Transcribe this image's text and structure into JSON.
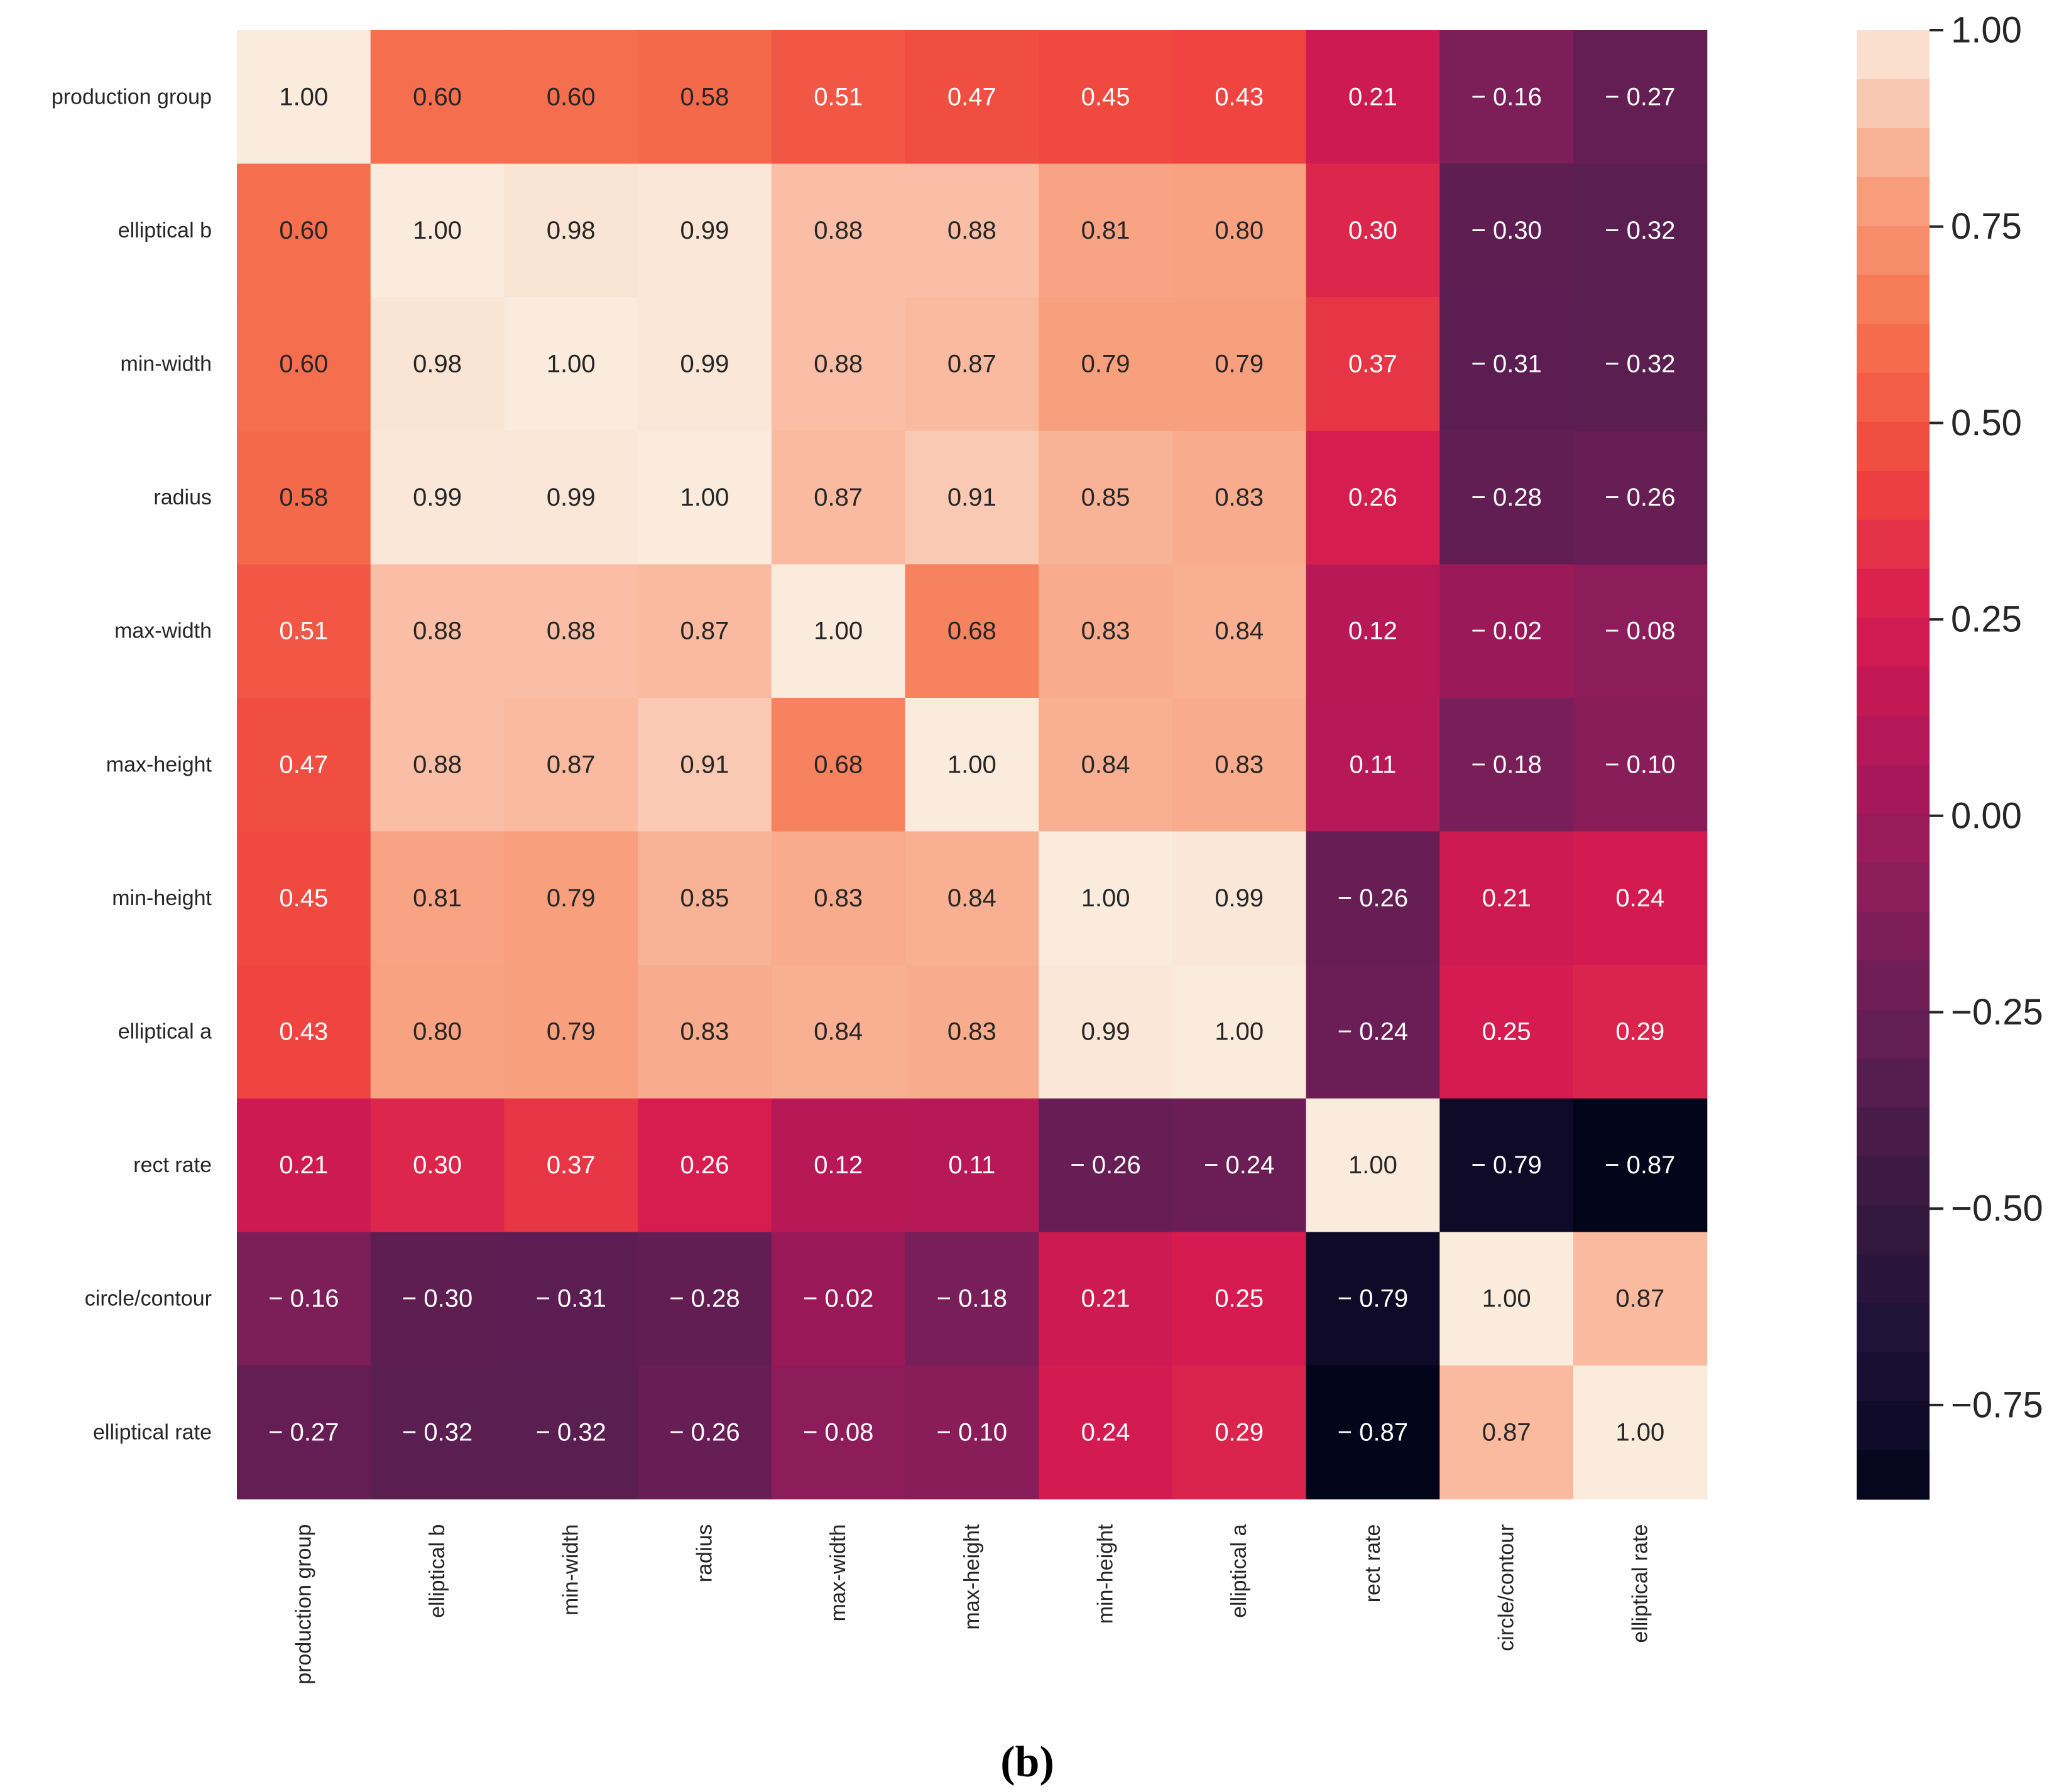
{
  "caption": "(b)",
  "chart_data": {
    "type": "heatmap",
    "title": "",
    "colormap": "rocket",
    "vmin": -0.87,
    "vmax": 1.0,
    "row_labels": [
      "production group",
      "elliptical b",
      "min-width",
      "radius",
      "max-width",
      "max-height",
      "min-height",
      "elliptical a",
      "rect rate",
      "circle/contour",
      "elliptical rate"
    ],
    "col_labels": [
      "production group",
      "elliptical b",
      "min-width",
      "radius",
      "max-width",
      "max-height",
      "min-height",
      "elliptical a",
      "rect rate",
      "circle/contour",
      "elliptical rate"
    ],
    "values": [
      [
        1.0,
        0.6,
        0.6,
        0.58,
        0.51,
        0.47,
        0.45,
        0.43,
        0.21,
        -0.16,
        -0.27
      ],
      [
        0.6,
        1.0,
        0.98,
        0.99,
        0.88,
        0.88,
        0.81,
        0.8,
        0.3,
        -0.3,
        -0.32
      ],
      [
        0.6,
        0.98,
        1.0,
        0.99,
        0.88,
        0.87,
        0.79,
        0.79,
        0.37,
        -0.31,
        -0.32
      ],
      [
        0.58,
        0.99,
        0.99,
        1.0,
        0.87,
        0.91,
        0.85,
        0.83,
        0.26,
        -0.28,
        -0.26
      ],
      [
        0.51,
        0.88,
        0.88,
        0.87,
        1.0,
        0.68,
        0.83,
        0.84,
        0.12,
        -0.02,
        -0.08
      ],
      [
        0.47,
        0.88,
        0.87,
        0.91,
        0.68,
        1.0,
        0.84,
        0.83,
        0.11,
        -0.18,
        -0.1
      ],
      [
        0.45,
        0.81,
        0.79,
        0.85,
        0.83,
        0.84,
        1.0,
        0.99,
        -0.26,
        0.21,
        0.24
      ],
      [
        0.43,
        0.8,
        0.79,
        0.83,
        0.84,
        0.83,
        0.99,
        1.0,
        -0.24,
        0.25,
        0.29
      ],
      [
        0.21,
        0.3,
        0.37,
        0.26,
        0.12,
        0.11,
        -0.26,
        -0.24,
        1.0,
        -0.79,
        -0.87
      ],
      [
        -0.16,
        -0.3,
        -0.31,
        -0.28,
        -0.02,
        -0.18,
        0.21,
        0.25,
        -0.79,
        1.0,
        0.87
      ],
      [
        -0.27,
        -0.32,
        -0.32,
        -0.26,
        -0.08,
        -0.1,
        0.24,
        0.29,
        -0.87,
        0.87,
        1.0
      ]
    ],
    "cell_labels": [
      [
        "1.00",
        "0.60",
        "0.60",
        "0.58",
        "0.51",
        "0.47",
        "0.45",
        "0.43",
        "0.21",
        "− 0.16",
        "− 0.27"
      ],
      [
        "0.60",
        "1.00",
        "0.98",
        "0.99",
        "0.88",
        "0.88",
        "0.81",
        "0.80",
        "0.30",
        "− 0.30",
        "− 0.32"
      ],
      [
        "0.60",
        "0.98",
        "1.00",
        "0.99",
        "0.88",
        "0.87",
        "0.79",
        "0.79",
        "0.37",
        "− 0.31",
        "− 0.32"
      ],
      [
        "0.58",
        "0.99",
        "0.99",
        "1.00",
        "0.87",
        "0.91",
        "0.85",
        "0.83",
        "0.26",
        "− 0.28",
        "− 0.26"
      ],
      [
        "0.51",
        "0.88",
        "0.88",
        "0.87",
        "1.00",
        "0.68",
        "0.83",
        "0.84",
        "0.12",
        "− 0.02",
        "− 0.08"
      ],
      [
        "0.47",
        "0.88",
        "0.87",
        "0.91",
        "0.68",
        "1.00",
        "0.84",
        "0.83",
        "0.11",
        "− 0.18",
        "− 0.10"
      ],
      [
        "0.45",
        "0.81",
        "0.79",
        "0.85",
        "0.83",
        "0.84",
        "1.00",
        "0.99",
        "− 0.26",
        "0.21",
        "0.24"
      ],
      [
        "0.43",
        "0.80",
        "0.79",
        "0.83",
        "0.84",
        "0.83",
        "0.99",
        "1.00",
        "− 0.24",
        "0.25",
        "0.29"
      ],
      [
        "0.21",
        "0.30",
        "0.37",
        "0.26",
        "0.12",
        "0.11",
        "− 0.26",
        "− 0.24",
        "1.00",
        "− 0.79",
        "− 0.87"
      ],
      [
        "− 0.16",
        "− 0.30",
        "− 0.31",
        "− 0.28",
        "− 0.02",
        "− 0.18",
        "0.21",
        "0.25",
        "− 0.79",
        "1.00",
        "0.87"
      ],
      [
        "− 0.27",
        "− 0.32",
        "− 0.32",
        "− 0.26",
        "− 0.08",
        "− 0.10",
        "0.24",
        "0.29",
        "− 0.87",
        "0.87",
        "1.00"
      ]
    ],
    "colorbar": {
      "ticks": [
        1.0,
        0.75,
        0.5,
        0.25,
        0.0,
        -0.25,
        -0.5,
        -0.75
      ],
      "tick_labels": [
        "1.00",
        "0.75",
        "0.50",
        "0.25",
        "0.00",
        "−0.25",
        "−0.50",
        "−0.75"
      ],
      "levels": 30
    },
    "colormap_stops": [
      [
        0.0,
        "#03051a"
      ],
      [
        0.1,
        "#1c1138"
      ],
      [
        0.2,
        "#36193e"
      ],
      [
        0.3,
        "#5c1e52"
      ],
      [
        0.4,
        "#841e5a"
      ],
      [
        0.5,
        "#ad1759"
      ],
      [
        0.6,
        "#d61b50"
      ],
      [
        0.7,
        "#f0463f"
      ],
      [
        0.8,
        "#f6744f"
      ],
      [
        0.9,
        "#f8a585"
      ],
      [
        1.0,
        "#faebdd"
      ]
    ]
  }
}
